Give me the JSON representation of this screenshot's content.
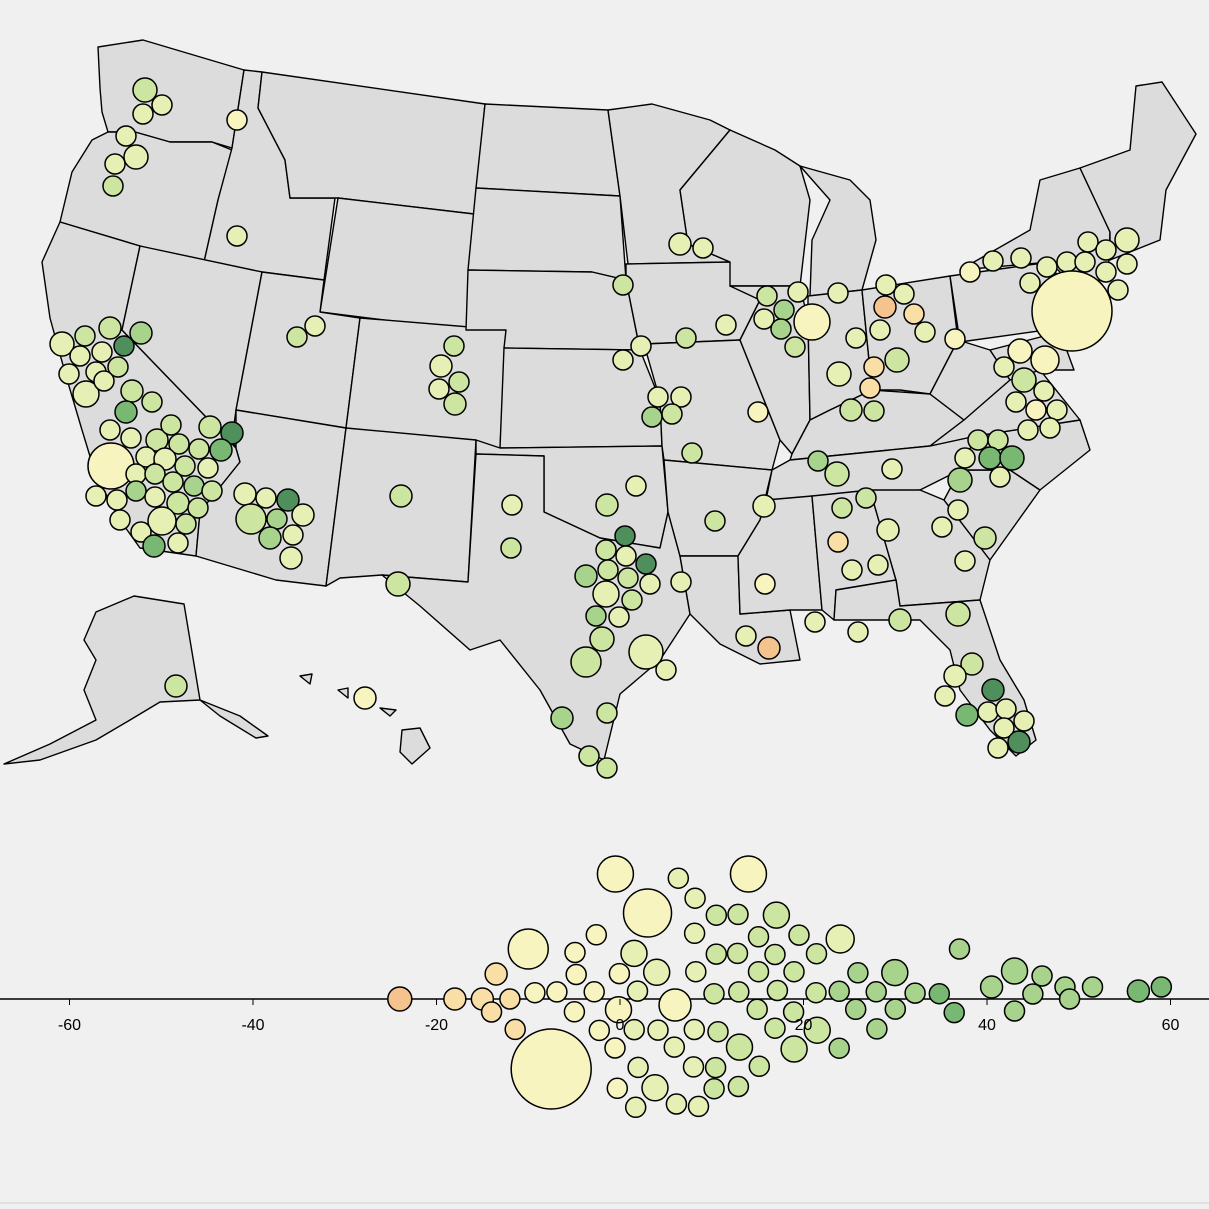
{
  "palette": {
    "background": "#f0f0f0",
    "land": "#dcdcdc",
    "ramp": [
      "#f4c38e",
      "#f9dea6",
      "#f7f4c0",
      "#e6f0b5",
      "#cce5a0",
      "#a7d38c",
      "#79b873",
      "#4f8f5c"
    ]
  },
  "axis": {
    "domain": [
      -65,
      65
    ],
    "ticks": [
      "-60",
      "-40",
      "-20",
      "0",
      "20",
      "40",
      "60"
    ]
  },
  "map_markers": [
    {
      "region": "Pacific Northwest",
      "count": 9,
      "shade": 3
    },
    {
      "region": "California",
      "count": 44,
      "shade": 4
    },
    {
      "region": "Nevada / Arizona",
      "count": 12,
      "shade": 4
    },
    {
      "region": "Colorado",
      "count": 5,
      "shade": 3
    },
    {
      "region": "Texas",
      "count": 22,
      "shade": 4
    },
    {
      "region": "Midwest",
      "count": 30,
      "shade": 3
    },
    {
      "region": "Northeast",
      "count": 26,
      "shade": 2
    },
    {
      "region": "Southeast",
      "count": 30,
      "shade": 3
    },
    {
      "region": "Florida",
      "count": 12,
      "shade": 5
    },
    {
      "region": "Alaska",
      "count": 1,
      "shade": 3
    },
    {
      "region": "Hawaii",
      "count": 1,
      "shade": 1
    }
  ]
}
